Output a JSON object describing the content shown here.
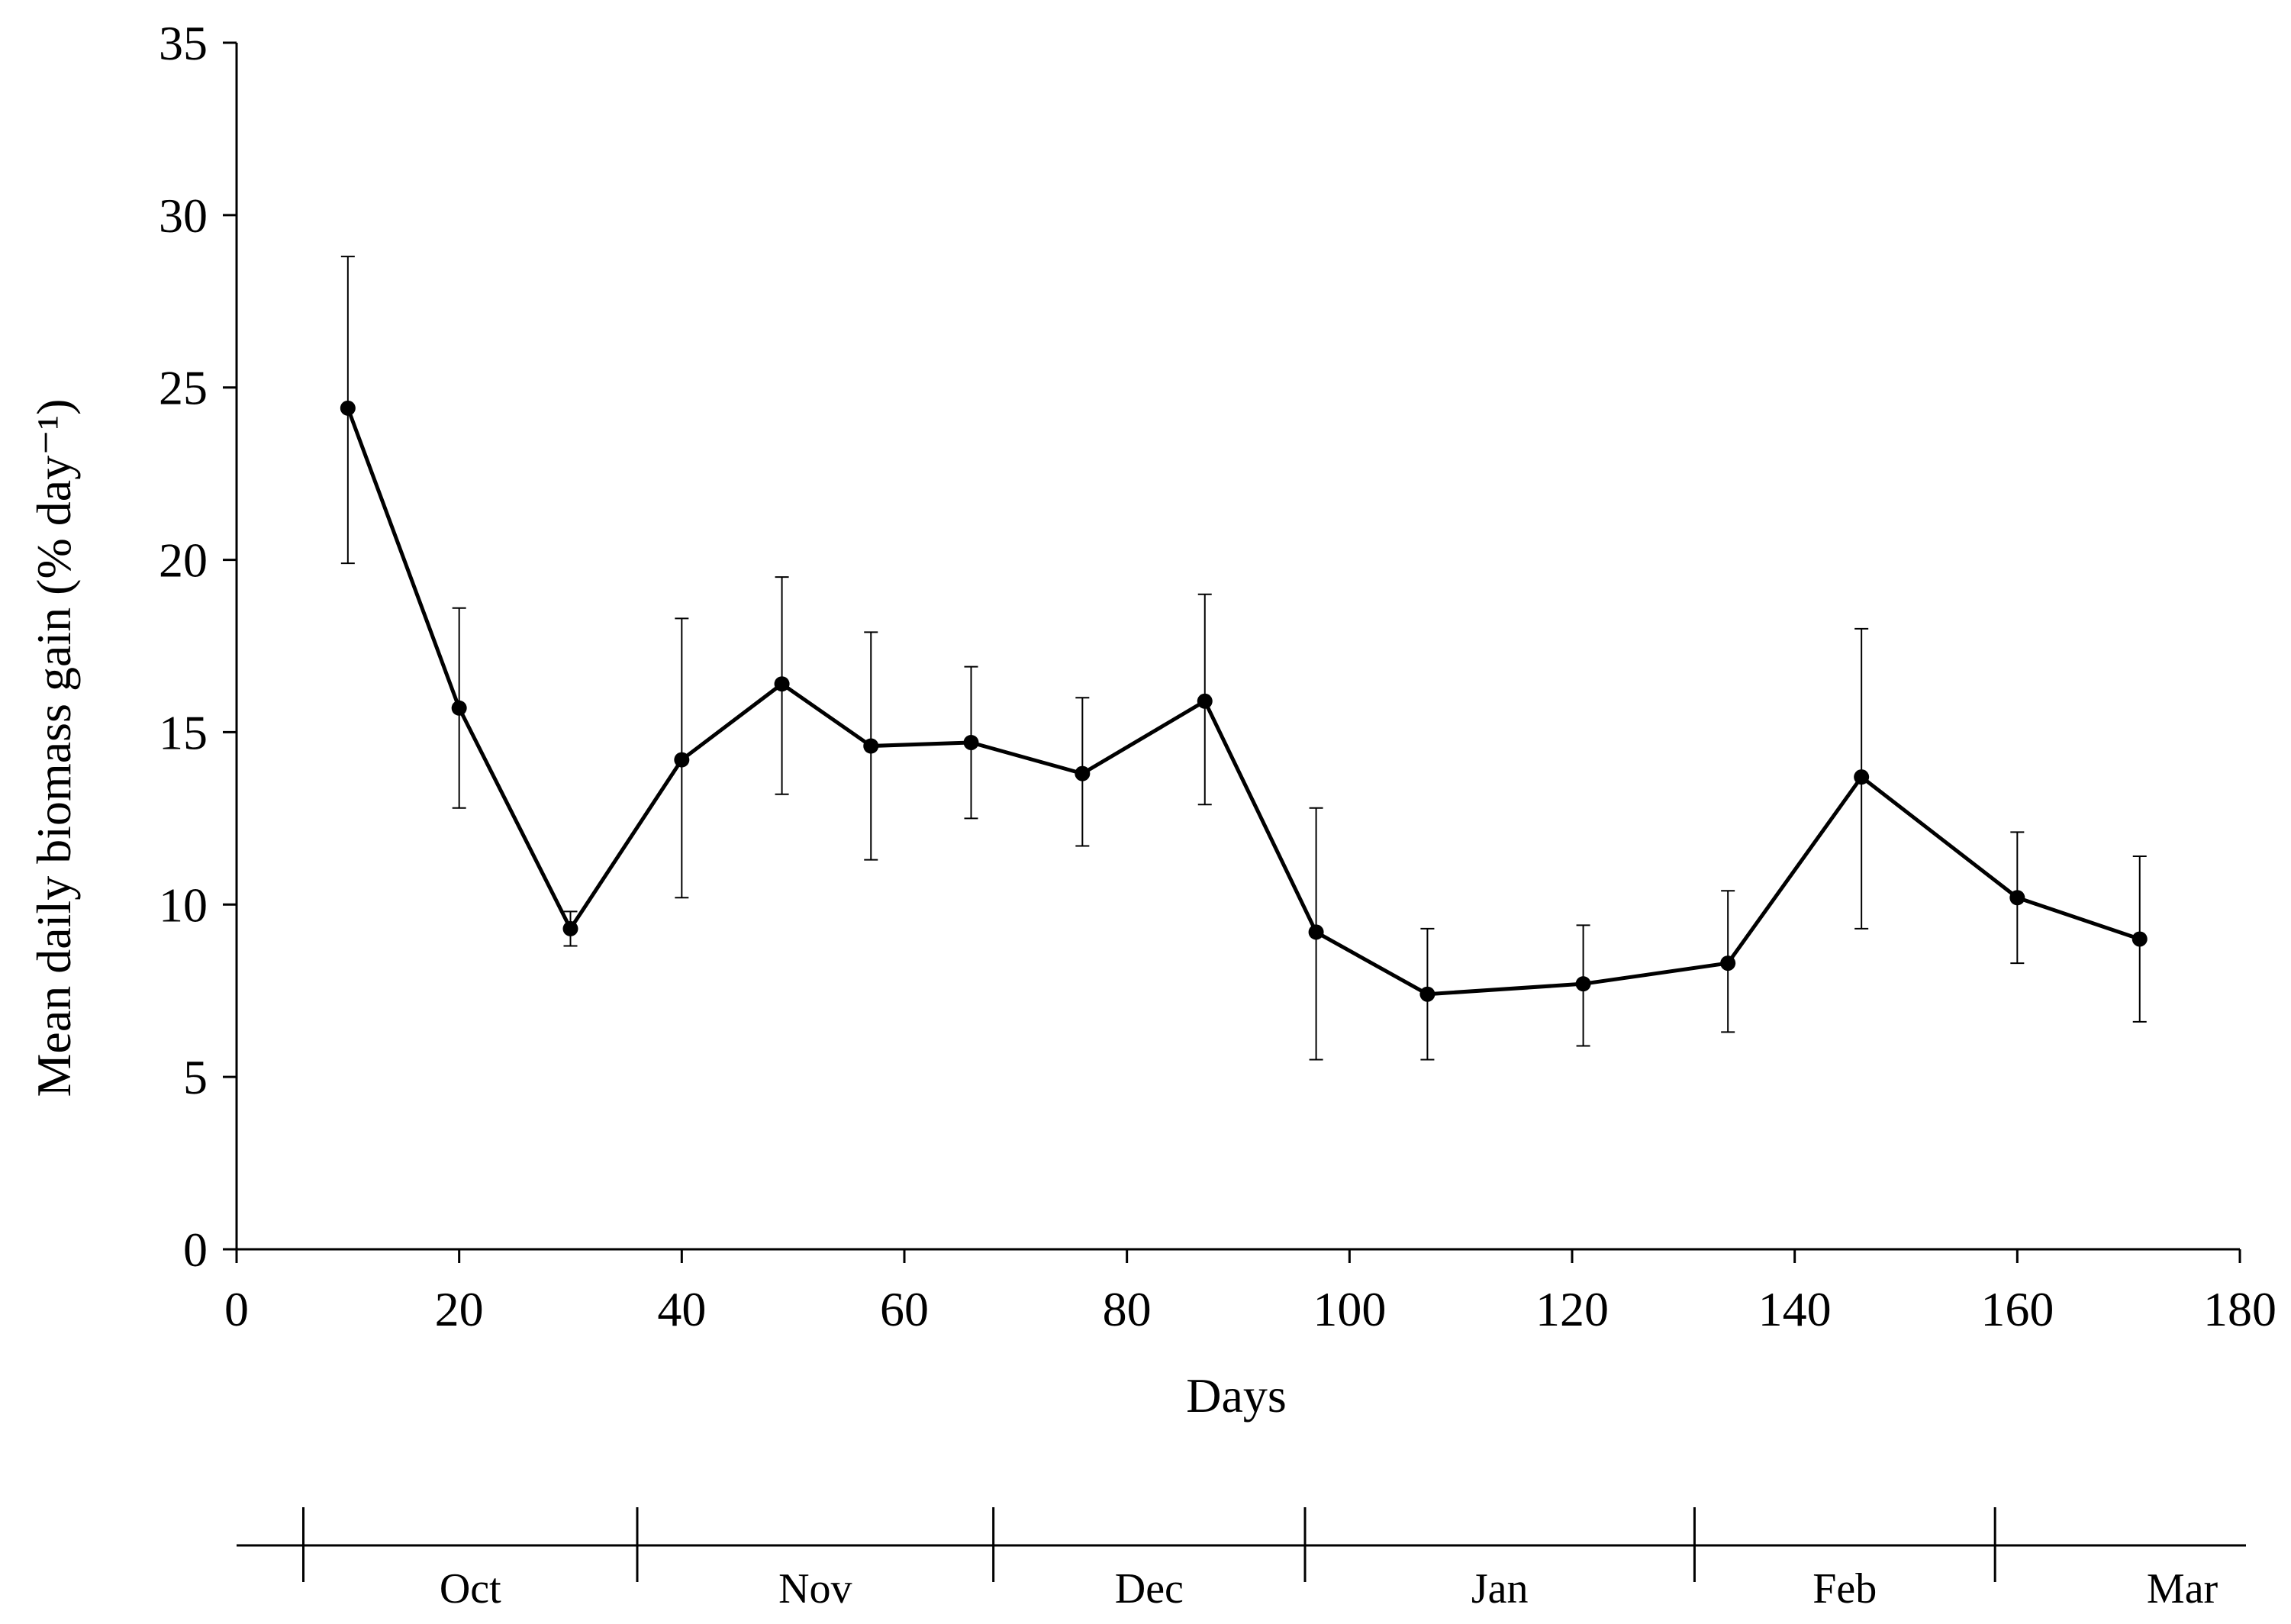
{
  "chart_data": {
    "type": "line",
    "xlabel": "Days",
    "ylabel": "Mean daily biomass gain (% day⁻¹)",
    "xlim": [
      0,
      180
    ],
    "ylim": [
      0,
      35
    ],
    "xticks": [
      0,
      20,
      40,
      60,
      80,
      100,
      120,
      140,
      160,
      180
    ],
    "yticks": [
      0,
      5,
      10,
      15,
      20,
      25,
      30,
      35
    ],
    "grid": false,
    "legend": "none",
    "series": [
      {
        "x": [
          10,
          20,
          30,
          40,
          49,
          57,
          66,
          76,
          87,
          97,
          107,
          121,
          134,
          146,
          160,
          171
        ],
        "y": [
          24.4,
          15.7,
          9.3,
          14.2,
          16.4,
          14.6,
          14.7,
          13.8,
          15.9,
          9.2,
          7.4,
          7.7,
          8.3,
          13.7,
          10.2,
          9.0
        ],
        "error_low": [
          19.9,
          12.8,
          8.8,
          10.2,
          13.2,
          11.3,
          12.5,
          11.7,
          12.9,
          5.5,
          5.5,
          5.9,
          6.3,
          9.3,
          8.3,
          6.6
        ],
        "error_high": [
          28.8,
          18.6,
          9.8,
          18.3,
          19.5,
          17.9,
          16.9,
          16.0,
          19.0,
          12.8,
          9.3,
          9.4,
          10.4,
          18.0,
          12.1,
          11.4
        ]
      }
    ],
    "color": "#000000",
    "months": [
      {
        "label": "Oct",
        "start": 6,
        "end": 36
      },
      {
        "label": "Nov",
        "start": 36,
        "end": 68
      },
      {
        "label": "Dec",
        "start": 68,
        "end": 96
      },
      {
        "label": "Jan",
        "start": 96,
        "end": 131
      },
      {
        "label": "Feb",
        "start": 131,
        "end": 158
      },
      {
        "label": "Mar",
        "start": 158,
        "end": 180
      }
    ]
  }
}
